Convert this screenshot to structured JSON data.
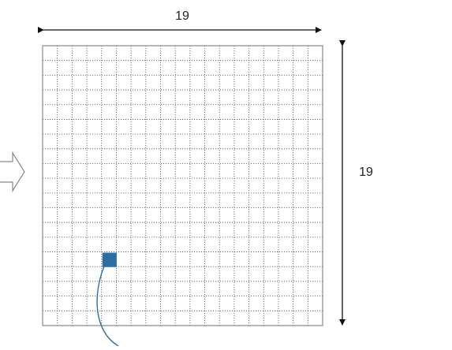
{
  "grid": {
    "rows": 19,
    "cols": 19,
    "highlighted_cell": {
      "row": 15,
      "col": 5
    },
    "highlight_color": "#2e6fa3",
    "line_color": "#555555",
    "border_color": "#888888"
  },
  "dimensions": {
    "width_label": "19",
    "height_label": "19"
  },
  "arrow_color": "#111111",
  "callout": {
    "color": "#2e6fa3",
    "text": ""
  },
  "left_arrow_icon": "hollow-right-arrow-icon"
}
